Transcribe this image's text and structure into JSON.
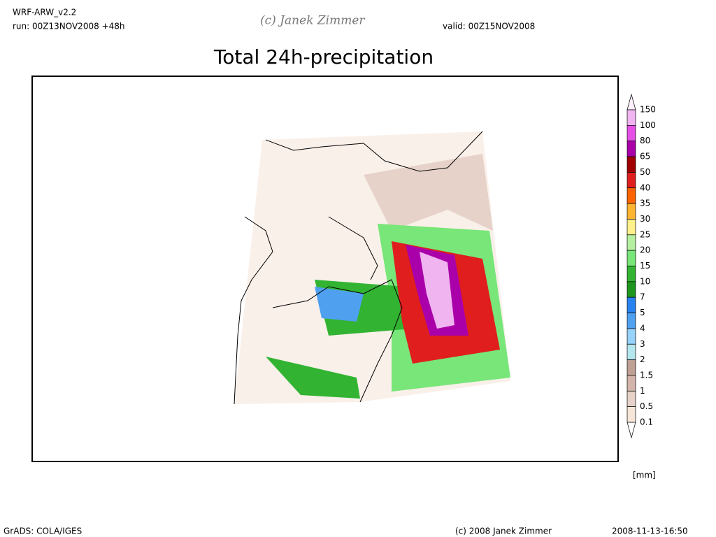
{
  "header": {
    "model": "WRF-ARW_v2.2",
    "run": "run: 00Z13NOV2008 +48h",
    "watermark": "(c) Janek Zimmer",
    "valid": "valid: 00Z15NOV2008"
  },
  "title": "Total 24h-precipitation",
  "legend": {
    "unit": "[mm]",
    "levels": [
      "150",
      "100",
      "80",
      "65",
      "50",
      "40",
      "35",
      "30",
      "25",
      "20",
      "15",
      "10",
      "7",
      "5",
      "4",
      "3",
      "2",
      "1.5",
      "1",
      "0.5",
      "0.1"
    ],
    "colors": [
      "#fff0ff",
      "#f0b4f0",
      "#e650e6",
      "#aa00aa",
      "#a00000",
      "#e01e1e",
      "#ff6400",
      "#ffb432",
      "#fff08c",
      "#b4f0a0",
      "#78e678",
      "#32b432",
      "#1e961e",
      "#2882f0",
      "#50a0f0",
      "#96d2fa",
      "#b4e6f0",
      "#bfa094",
      "#d2b4aa",
      "#e6d2c8",
      "#f5e6d8",
      "#ffffff"
    ]
  },
  "footer": {
    "software": "GrADS: COLA/IGES",
    "copyright": "(c) 2008 Janek Zimmer",
    "timestamp": "2008-11-13-16:50"
  }
}
